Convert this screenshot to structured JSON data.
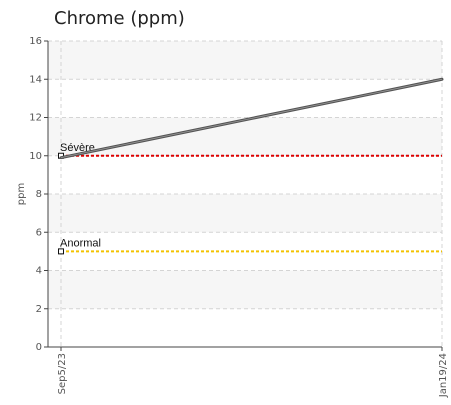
{
  "chart_data": {
    "type": "line",
    "title": "Chrome (ppm)",
    "ylabel": "ppm",
    "xlabel": "",
    "ylim": [
      0,
      16
    ],
    "yticks": [
      0,
      2,
      4,
      6,
      8,
      10,
      12,
      14,
      16
    ],
    "x": [
      "Sep5/23",
      "Jan19/24"
    ],
    "series": [
      {
        "values": [
          9.9,
          14
        ],
        "color": "#555555"
      }
    ],
    "thresholds": [
      {
        "label": "Sévère",
        "value": 10,
        "color": "#dd0000"
      },
      {
        "label": "Anormal",
        "value": 5,
        "color": "#f2c200"
      }
    ],
    "grid": true,
    "legend": "none"
  }
}
